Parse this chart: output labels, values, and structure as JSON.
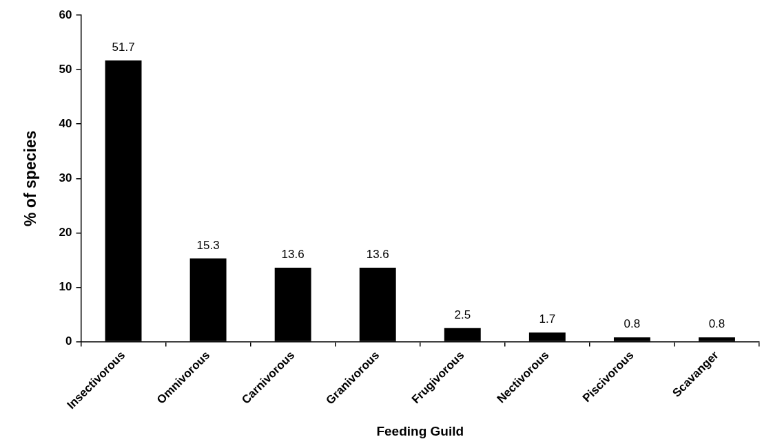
{
  "chart_data": {
    "type": "bar",
    "xlabel": "Feeding Guild",
    "ylabel": "% of species",
    "categories": [
      "Insectivorous",
      "Omnivorous",
      "Carnivorous",
      "Granivorous",
      "Frugivorous",
      "Nectivorous",
      "Piscivorous",
      "Scavanger"
    ],
    "values": [
      51.7,
      15.3,
      13.6,
      13.6,
      2.5,
      1.7,
      0.8,
      0.8
    ],
    "color": "#000000",
    "ylim": [
      0,
      60
    ],
    "yticks": [
      0,
      10,
      20,
      30,
      40,
      50,
      60
    ],
    "grid": false,
    "legend": false,
    "data_labels": true
  }
}
